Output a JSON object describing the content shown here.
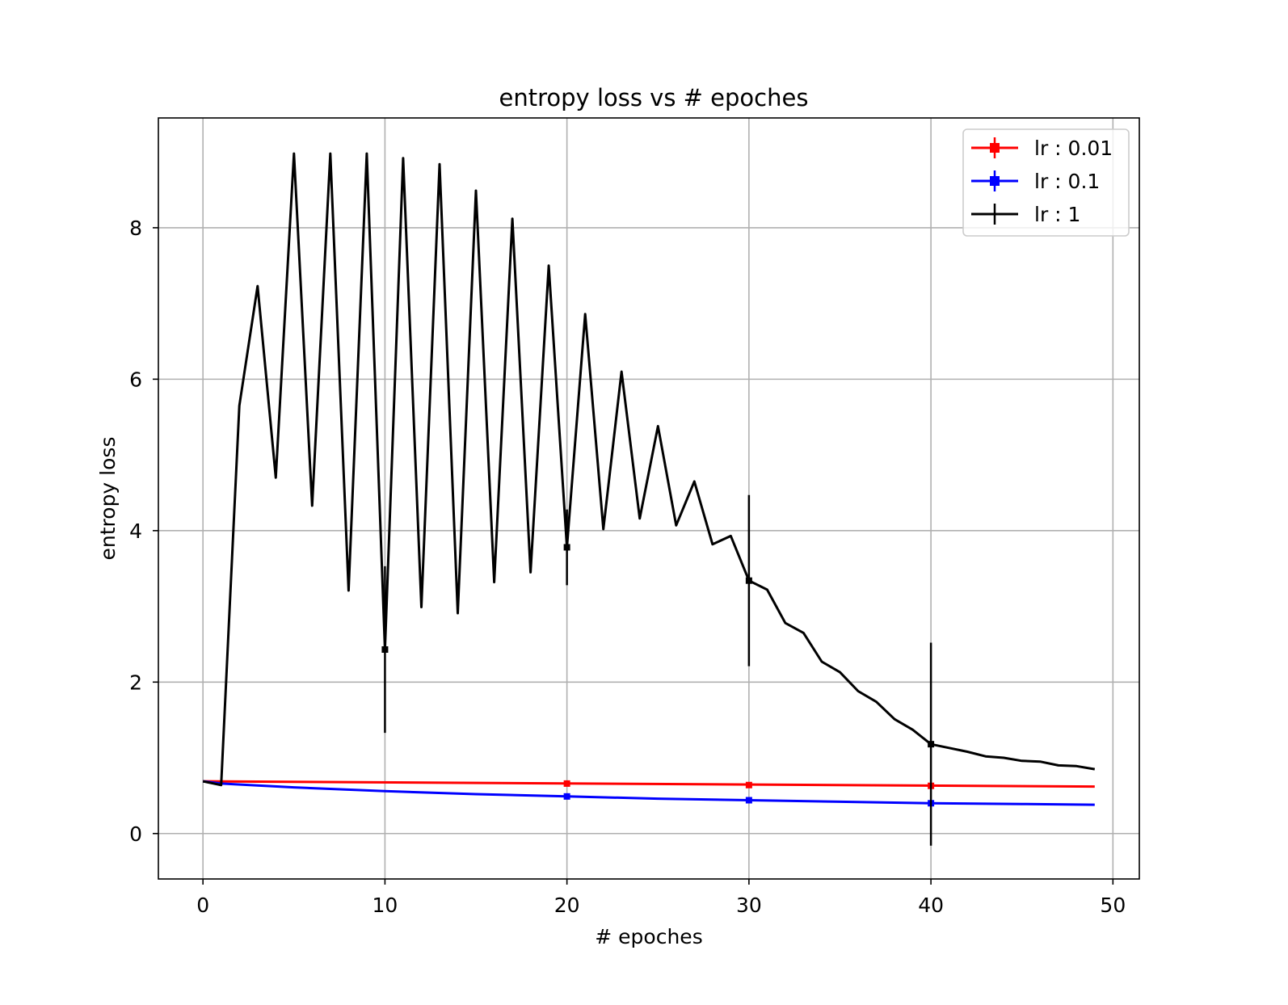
{
  "chart_data": {
    "type": "line",
    "title": "entropy loss vs # epoches",
    "xlabel": "# epoches",
    "ylabel": "entropy loss",
    "xlim": [
      -2.45,
      51.45
    ],
    "ylim": [
      -0.6,
      9.45
    ],
    "xticks": [
      0,
      10,
      20,
      30,
      40,
      50
    ],
    "yticks": [
      0,
      2,
      4,
      6,
      8
    ],
    "grid": true,
    "legend_position": "upper right",
    "series": [
      {
        "name": "lr : 0.01",
        "color": "#ff0000",
        "marker": "errorbar",
        "x": [
          0,
          49
        ],
        "y": [
          0.69,
          0.62
        ],
        "errorbars": [
          {
            "x": 20,
            "y": 0.66,
            "err": 0.0
          },
          {
            "x": 30,
            "y": 0.64,
            "err": 0.0
          },
          {
            "x": 40,
            "y": 0.63,
            "err": 0.0
          }
        ]
      },
      {
        "name": "lr : 0.1",
        "color": "#0000ff",
        "marker": "errorbar",
        "x": [
          0,
          1,
          5,
          10,
          15,
          20,
          25,
          30,
          35,
          40,
          45,
          49
        ],
        "y": [
          0.69,
          0.66,
          0.61,
          0.56,
          0.52,
          0.49,
          0.46,
          0.44,
          0.42,
          0.4,
          0.39,
          0.38
        ],
        "errorbars": [
          {
            "x": 20,
            "y": 0.49,
            "err": 0.03
          },
          {
            "x": 30,
            "y": 0.44,
            "err": 0.03
          },
          {
            "x": 40,
            "y": 0.4,
            "err": 0.03
          }
        ]
      },
      {
        "name": "lr : 1",
        "color": "#000000",
        "marker": "errorbar",
        "x": [
          0,
          1,
          2,
          3,
          4,
          5,
          6,
          7,
          8,
          9,
          10,
          11,
          12,
          13,
          14,
          15,
          16,
          17,
          18,
          19,
          20,
          21,
          22,
          23,
          24,
          25,
          26,
          27,
          28,
          29,
          30,
          31,
          32,
          33,
          34,
          35,
          36,
          37,
          38,
          39,
          40,
          41,
          42,
          43,
          44,
          45,
          46,
          47,
          48,
          49
        ],
        "y": [
          0.69,
          0.64,
          5.65,
          7.23,
          4.7,
          8.98,
          4.33,
          8.98,
          3.21,
          8.98,
          2.43,
          8.92,
          2.99,
          8.84,
          2.91,
          8.49,
          3.32,
          8.12,
          3.45,
          7.5,
          3.78,
          6.86,
          4.02,
          6.1,
          4.16,
          5.38,
          4.07,
          4.65,
          3.82,
          3.93,
          3.34,
          3.22,
          2.78,
          2.65,
          2.27,
          2.13,
          1.88,
          1.74,
          1.51,
          1.37,
          1.18,
          1.13,
          1.08,
          1.02,
          1.0,
          0.96,
          0.95,
          0.9,
          0.89,
          0.85
        ],
        "errorbars": [
          {
            "x": 10,
            "y": 2.43,
            "err": 1.1
          },
          {
            "x": 20,
            "y": 3.78,
            "err": 0.5
          },
          {
            "x": 30,
            "y": 3.34,
            "err": 1.13
          },
          {
            "x": 40,
            "y": 1.18,
            "err": 1.34
          }
        ]
      }
    ]
  }
}
